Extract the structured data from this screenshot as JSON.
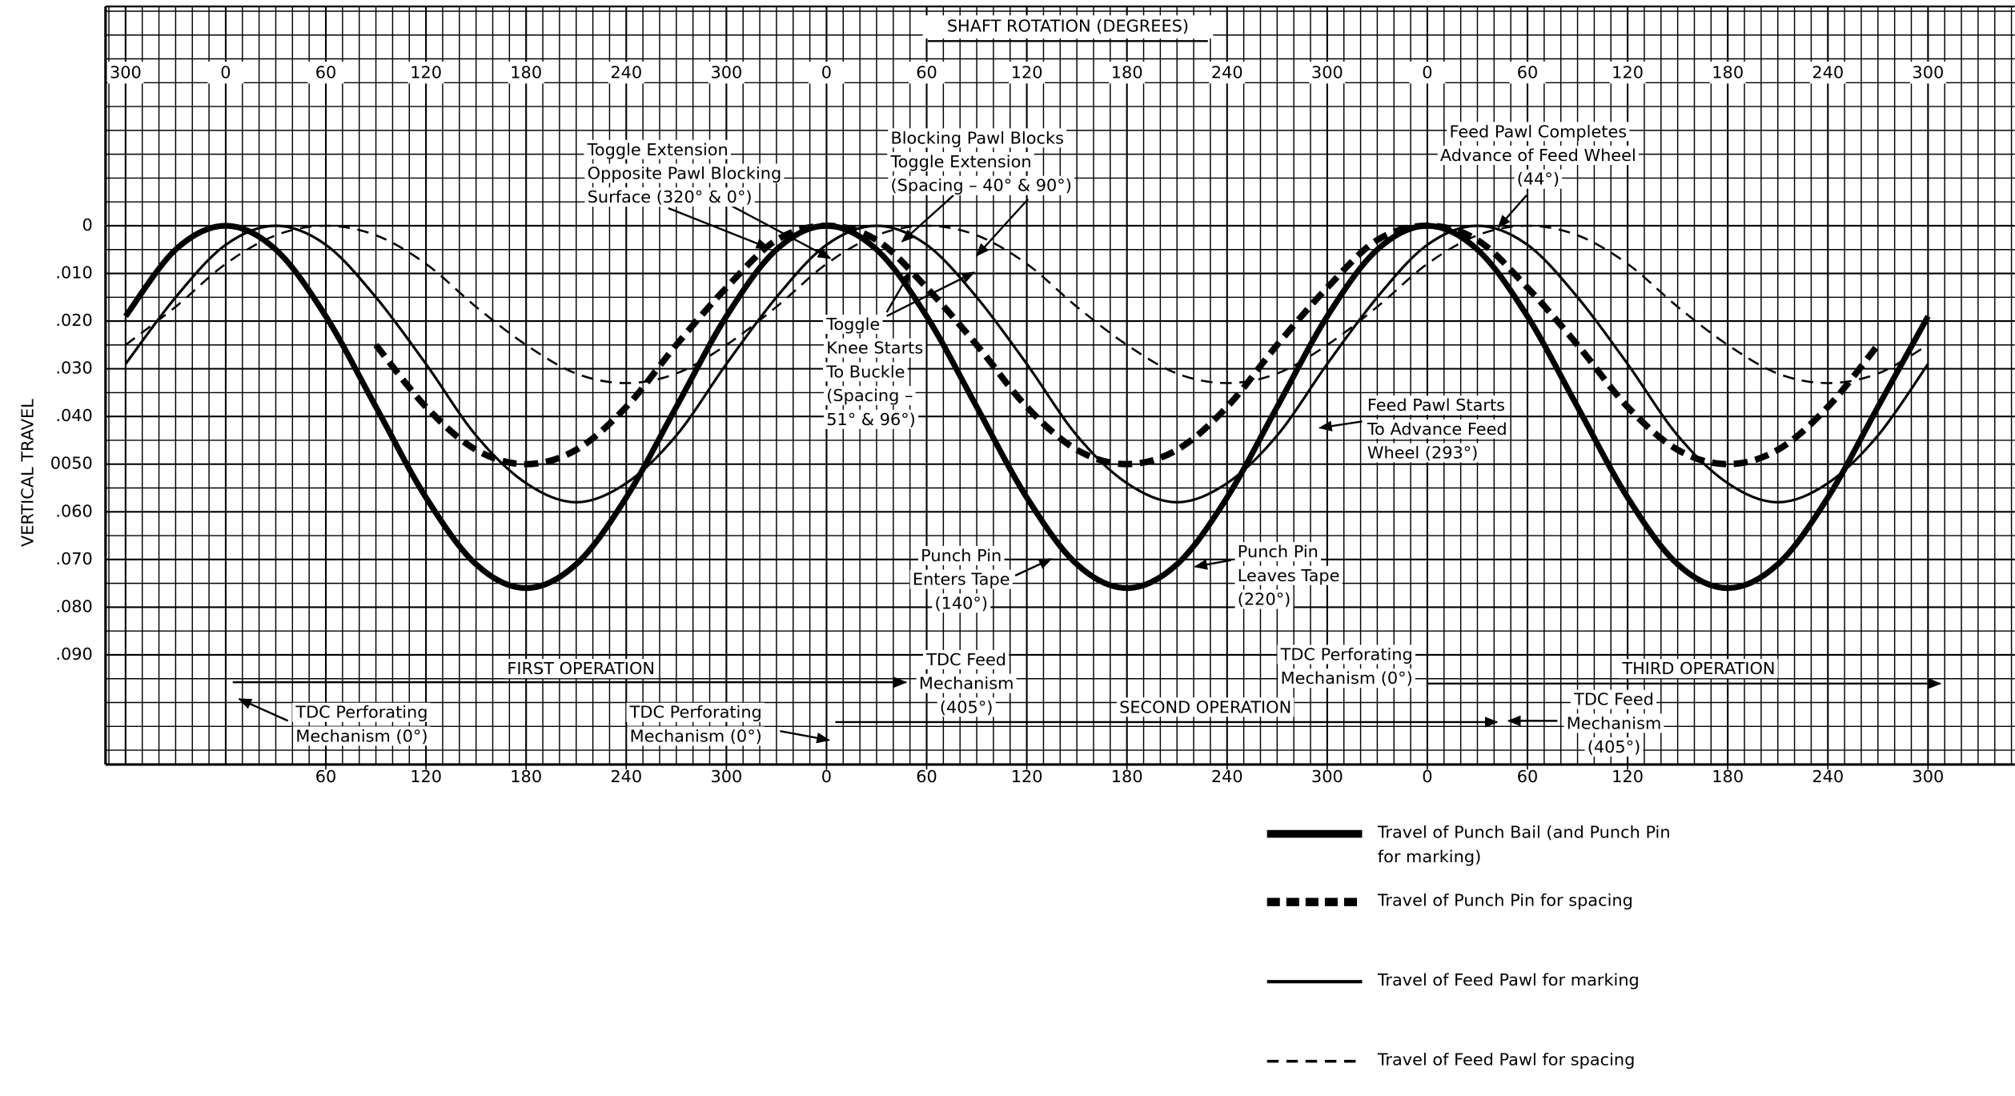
{
  "chart_data": {
    "type": "line",
    "title": "SHAFT ROTATION (DEGREES)",
    "ylabel": "VERTICAL TRAVEL",
    "x": [
      -60,
      -30,
      0,
      30,
      60,
      90,
      120,
      150,
      180,
      210,
      240,
      270,
      300,
      330,
      360,
      390,
      420,
      450,
      480,
      510,
      540,
      570,
      600,
      630,
      660,
      690,
      720,
      750,
      780,
      810,
      840,
      870,
      900,
      930,
      960,
      990,
      1020
    ],
    "series": [
      {
        "name": "Travel of Punch Bail (and Punch Pin for marking)",
        "color": "#000000",
        "width": 4.5,
        "dashed": false,
        "values": [
          0.019,
          0.005,
          0,
          0.005,
          0.019,
          0.038,
          0.057,
          0.071,
          0.076,
          0.071,
          0.057,
          0.038,
          0.019,
          0.005,
          0,
          0.005,
          0.019,
          0.038,
          0.057,
          0.071,
          0.076,
          0.071,
          0.057,
          0.038,
          0.019,
          0.005,
          0,
          0.005,
          0.019,
          0.038,
          0.057,
          0.071,
          0.076,
          0.071,
          0.057,
          0.038,
          0.019
        ]
      },
      {
        "name": "Travel of Punch Pin for spacing",
        "color": "#000000",
        "width": 5,
        "dashed": true,
        "values": [
          null,
          null,
          null,
          null,
          null,
          0.025,
          0.038,
          0.047,
          0.05,
          0.047,
          0.038,
          0.025,
          0.013,
          0.003,
          0,
          0.003,
          0.013,
          0.025,
          0.038,
          0.047,
          0.05,
          0.047,
          0.038,
          0.025,
          0.013,
          0.003,
          0,
          0.003,
          0.013,
          0.025,
          0.038,
          0.047,
          0.05,
          0.047,
          0.038,
          0.025,
          null
        ]
      },
      {
        "name": "Travel of Feed Pawl for marking",
        "color": "#000000",
        "width": 2,
        "dashed": false,
        "values": [
          0.029,
          0.015,
          0.004,
          0,
          0.004,
          0.015,
          0.029,
          0.044,
          0.054,
          0.058,
          0.054,
          0.044,
          0.029,
          0.015,
          0.004,
          0,
          0.004,
          0.015,
          0.029,
          0.044,
          0.054,
          0.058,
          0.054,
          0.044,
          0.029,
          0.015,
          0.004,
          0,
          0.004,
          0.015,
          0.029,
          0.044,
          0.054,
          0.058,
          0.054,
          0.044,
          0.029
        ]
      },
      {
        "name": "Travel of Feed Pawl for spacing",
        "color": "#000000",
        "width": 1.6,
        "dashed": true,
        "values": [
          0.025,
          0.017,
          0.008,
          0.002,
          0,
          0.002,
          0.008,
          0.017,
          0.025,
          0.031,
          0.033,
          0.031,
          0.025,
          0.017,
          0.008,
          0.002,
          0,
          0.002,
          0.008,
          0.017,
          0.025,
          0.031,
          0.033,
          0.031,
          0.025,
          0.017,
          0.008,
          0.002,
          0,
          0.002,
          0.008,
          0.017,
          0.025,
          0.031,
          0.033,
          0.031,
          0.025
        ]
      }
    ],
    "xlim": [
      -72,
      1072
    ],
    "ylim": [
      -0.046,
      0.113
    ],
    "xticks": [
      {
        "value": -60,
        "label": "300"
      },
      0,
      60,
      120,
      180,
      240,
      300,
      {
        "value": 360,
        "label": "0"
      },
      {
        "value": 420,
        "label": "60"
      },
      {
        "value": 480,
        "label": "120"
      },
      {
        "value": 540,
        "label": "180"
      },
      {
        "value": 600,
        "label": "240"
      },
      {
        "value": 660,
        "label": "300"
      },
      {
        "value": 720,
        "label": "0"
      },
      {
        "value": 780,
        "label": "60"
      },
      {
        "value": 840,
        "label": "120"
      },
      {
        "value": 900,
        "label": "180"
      },
      {
        "value": 960,
        "label": "240"
      },
      {
        "value": 1020,
        "label": "300"
      }
    ],
    "x2ticks": [
      60,
      120,
      180,
      240,
      300,
      {
        "value": 360,
        "label": "0"
      },
      {
        "value": 420,
        "label": "60"
      },
      {
        "value": 480,
        "label": "120"
      },
      {
        "value": 540,
        "label": "180"
      },
      {
        "value": 600,
        "label": "240"
      },
      {
        "value": 660,
        "label": "300"
      },
      {
        "value": 720,
        "label": "0"
      },
      {
        "value": 780,
        "label": "60"
      },
      {
        "value": 840,
        "label": "120"
      },
      {
        "value": 900,
        "label": "180"
      },
      {
        "value": 960,
        "label": "240"
      },
      {
        "value": 1020,
        "label": "300"
      }
    ],
    "yticks": [
      0,
      {
        "value": 0.01,
        "label": ".010"
      },
      {
        "value": 0.02,
        "label": ".020"
      },
      {
        "value": 0.03,
        "label": ".030"
      },
      {
        "value": 0.04,
        "label": ".040"
      },
      {
        "value": 0.05,
        "label": "0050"
      },
      {
        "value": 0.06,
        "label": ".060"
      },
      {
        "value": 0.07,
        "label": ".070"
      },
      {
        "value": 0.08,
        "label": ".080"
      },
      {
        "value": 0.09,
        "label": ".090"
      }
    ],
    "grid": true,
    "legend": "lower right",
    "annotations": [
      {
        "lines": [
          "Toggle Extension",
          "Opposite Pawl Blocking",
          "Surface (320° & 0°)"
        ]
      },
      {
        "lines": [
          "Blocking Pawl Blocks",
          "Toggle Extension",
          "(Spacing – 40° & 90°)"
        ]
      },
      {
        "lines": [
          "Toggle",
          "Knee Starts",
          "To Buckle",
          "(Spacing –",
          "51° & 96°)"
        ]
      },
      {
        "lines": [
          "Feed Pawl Completes",
          "Advance of Feed Wheel",
          "(44°)"
        ]
      },
      {
        "lines": [
          "Feed Pawl Starts",
          "To Advance Feed",
          "Wheel (293°)"
        ]
      },
      {
        "lines": [
          "Punch Pin",
          "Enters Tape",
          "(140°)"
        ]
      },
      {
        "lines": [
          "Punch Pin",
          "Leaves Tape",
          "(220°)"
        ]
      },
      {
        "lines": [
          "TDC Perforating",
          "Mechanism (0°)"
        ]
      },
      {
        "lines": [
          "TDC Perforating",
          "Mechanism (0°)"
        ]
      },
      {
        "lines": [
          "TDC Feed",
          "Mechanism",
          "(405°)"
        ]
      },
      {
        "lines": [
          "TDC Perforating",
          "Mechanism (0°)"
        ]
      },
      {
        "lines": [
          "TDC Feed",
          "Mechanism",
          "(405°)"
        ]
      },
      {
        "lines": [
          "FIRST OPERATION"
        ]
      },
      {
        "lines": [
          "SECOND OPERATION"
        ]
      },
      {
        "lines": [
          "THIRD OPERATION"
        ]
      }
    ]
  }
}
